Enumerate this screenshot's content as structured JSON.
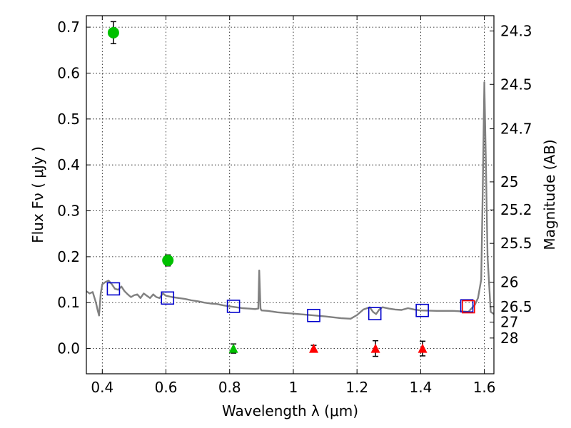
{
  "chart_data": {
    "type": "scatter",
    "xlabel": "Wavelength  λ (μm)",
    "ylabel": "Flux  Fν  ( μJy )",
    "y2label": "Magnitude (AB)",
    "xlim": [
      0.35,
      1.63
    ],
    "ylim": [
      -0.055,
      0.725
    ],
    "grid": true,
    "x_ticks": [
      {
        "value": 0.4,
        "label": "0.4"
      },
      {
        "value": 0.6,
        "label": "0.6"
      },
      {
        "value": 0.8,
        "label": "0.8"
      },
      {
        "value": 1.0,
        "label": "1"
      },
      {
        "value": 1.2,
        "label": "1.2"
      },
      {
        "value": 1.4,
        "label": "1.4"
      },
      {
        "value": 1.6,
        "label": "1.6"
      }
    ],
    "y_ticks": [
      {
        "value": 0.0,
        "label": "0.0"
      },
      {
        "value": 0.1,
        "label": "0.1"
      },
      {
        "value": 0.2,
        "label": "0.2"
      },
      {
        "value": 0.3,
        "label": "0.3"
      },
      {
        "value": 0.4,
        "label": "0.4"
      },
      {
        "value": 0.5,
        "label": "0.5"
      },
      {
        "value": 0.6,
        "label": "0.6"
      },
      {
        "value": 0.7,
        "label": "0.7"
      }
    ],
    "magnitude_ticks": [
      {
        "label": "24.3"
      },
      {
        "label": "24.5"
      },
      {
        "label": "24.7"
      },
      {
        "label": "25"
      },
      {
        "label": "25.2"
      },
      {
        "label": "25.5"
      },
      {
        "label": "26"
      },
      {
        "label": "26.5"
      },
      {
        "label": "27"
      },
      {
        "label": "28"
      }
    ],
    "series": [
      {
        "kind": "line",
        "color": "#808080",
        "x": [
          0.35,
          0.36,
          0.37,
          0.38,
          0.385,
          0.39,
          0.395,
          0.4,
          0.41,
          0.42,
          0.43,
          0.44,
          0.45,
          0.46,
          0.47,
          0.48,
          0.49,
          0.5,
          0.51,
          0.52,
          0.53,
          0.54,
          0.55,
          0.56,
          0.57,
          0.58,
          0.59,
          0.6,
          0.62,
          0.64,
          0.66,
          0.68,
          0.7,
          0.72,
          0.74,
          0.76,
          0.78,
          0.8,
          0.82,
          0.84,
          0.86,
          0.88,
          0.89,
          0.893,
          0.897,
          0.9,
          0.92,
          0.95,
          1.0,
          1.05,
          1.1,
          1.15,
          1.18,
          1.2,
          1.22,
          1.24,
          1.25,
          1.26,
          1.27,
          1.28,
          1.3,
          1.32,
          1.34,
          1.36,
          1.38,
          1.4,
          1.45,
          1.5,
          1.55,
          1.57,
          1.58,
          1.59,
          1.595,
          1.6,
          1.605,
          1.61,
          1.62,
          1.63
        ],
        "y": [
          0.125,
          0.12,
          0.123,
          0.1,
          0.085,
          0.072,
          0.12,
          0.14,
          0.145,
          0.148,
          0.14,
          0.13,
          0.128,
          0.135,
          0.125,
          0.118,
          0.112,
          0.116,
          0.118,
          0.11,
          0.12,
          0.115,
          0.11,
          0.118,
          0.112,
          0.11,
          0.12,
          0.115,
          0.112,
          0.11,
          0.108,
          0.105,
          0.103,
          0.1,
          0.098,
          0.097,
          0.094,
          0.092,
          0.09,
          0.088,
          0.087,
          0.086,
          0.087,
          0.17,
          0.087,
          0.083,
          0.082,
          0.079,
          0.076,
          0.073,
          0.07,
          0.066,
          0.065,
          0.073,
          0.085,
          0.09,
          0.08,
          0.075,
          0.085,
          0.09,
          0.087,
          0.085,
          0.084,
          0.088,
          0.085,
          0.083,
          0.082,
          0.082,
          0.08,
          0.095,
          0.11,
          0.15,
          0.35,
          0.58,
          0.4,
          0.2,
          0.08,
          0.075
        ]
      },
      {
        "kind": "square-open",
        "color": "#0000cc",
        "x": [
          0.435,
          0.605,
          0.812,
          1.064,
          1.256,
          1.405,
          1.545
        ],
        "y": [
          0.13,
          0.11,
          0.092,
          0.072,
          0.076,
          0.083,
          0.093
        ]
      },
      {
        "kind": "square-open",
        "color": "#ff0000",
        "x": [
          1.55
        ],
        "y": [
          0.091
        ]
      },
      {
        "kind": "circle-filled",
        "color": "#00c000",
        "x": [
          0.435,
          0.606
        ],
        "y": [
          0.688,
          0.192
        ],
        "yerr": [
          0.024,
          0.012
        ]
      },
      {
        "kind": "triangle-filled",
        "color": "#00c000",
        "x": [
          0.812
        ],
        "y": [
          0.0
        ],
        "yerr": [
          0.01
        ]
      },
      {
        "kind": "triangle-filled",
        "color": "#ff0000",
        "x": [
          1.064,
          1.258,
          1.406
        ],
        "y": [
          0.0,
          0.0,
          0.0
        ],
        "yerr": [
          0.007,
          0.017,
          0.016
        ]
      }
    ]
  }
}
